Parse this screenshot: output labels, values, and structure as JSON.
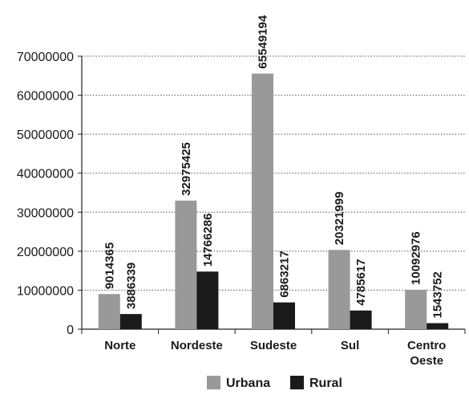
{
  "chart_data": {
    "type": "bar",
    "title": "",
    "xlabel": "",
    "ylabel": "",
    "categories": [
      "Norte",
      "Nordeste",
      "Sudeste",
      "Sul",
      "Centro Oeste"
    ],
    "series": [
      {
        "name": "Urbana",
        "color": "#999999",
        "values": [
          9014365,
          32975425,
          65549194,
          20321999,
          10092976
        ]
      },
      {
        "name": "Rural",
        "color": "#1a1a1a",
        "values": [
          3886339,
          14766286,
          6863217,
          4785617,
          1543752
        ]
      }
    ],
    "ylim": [
      0,
      70000000
    ],
    "yticks": [
      0,
      10000000,
      20000000,
      30000000,
      40000000,
      50000000,
      60000000,
      70000000
    ],
    "ytick_labels": [
      "0",
      "10000000",
      "20000000",
      "30000000",
      "40000000",
      "50000000",
      "60000000",
      "70000000"
    ],
    "grid": true,
    "legend_position": "bottom-center"
  }
}
